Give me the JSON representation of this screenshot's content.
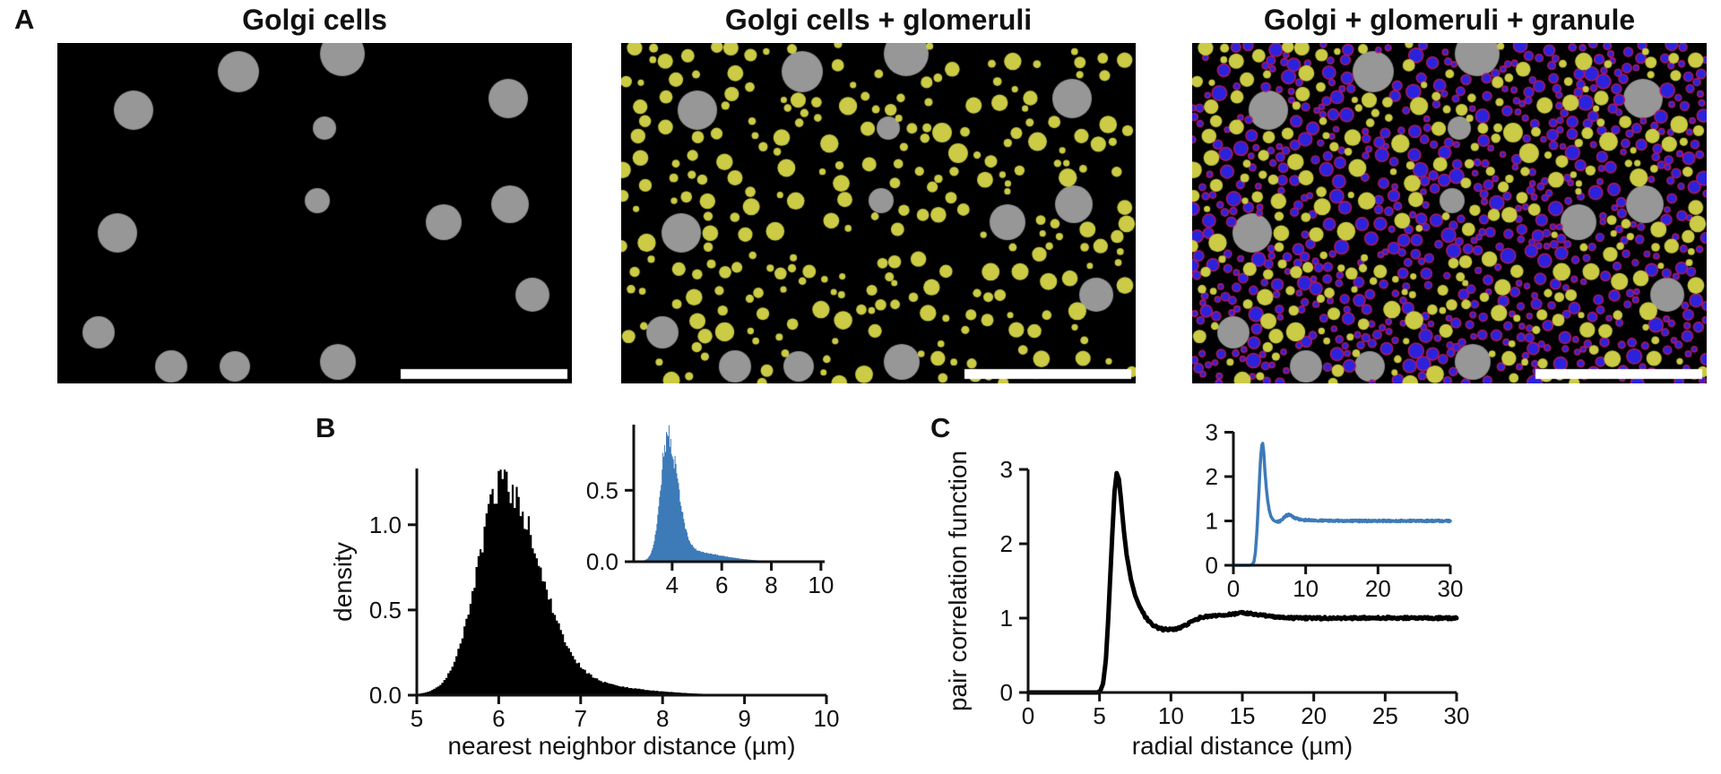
{
  "figure": {
    "labels": {
      "a": "A",
      "b": "B",
      "c": "C"
    },
    "background": "#ffffff",
    "text_color": "#111111"
  },
  "panels_a": {
    "titles": [
      "Golgi cells",
      "Golgi cells + glomeruli",
      "Golgi + glomeruli + granule"
    ],
    "image_background": "#000000",
    "layers": {
      "golgi": {
        "label": "Golgi cells",
        "color": "#979797",
        "positions": [
          [
            202,
            32,
            23
          ],
          [
            318,
            12,
            25
          ],
          [
            85,
            75,
            22
          ],
          [
            503,
            62,
            22
          ],
          [
            298,
            95,
            13
          ],
          [
            290,
            176,
            14
          ],
          [
            505,
            180,
            21
          ],
          [
            431,
            200,
            20
          ],
          [
            67,
            212,
            22
          ],
          [
            530,
            281,
            19
          ],
          [
            46,
            323,
            18
          ],
          [
            127,
            361,
            18
          ],
          [
            198,
            361,
            17
          ],
          [
            313,
            356,
            20
          ]
        ]
      },
      "glomeruli": {
        "label": "glomeruli",
        "color": "#cbcb45",
        "count": 265,
        "radius_min": 3.5,
        "radius_max": 11,
        "seed": 101
      },
      "granule": {
        "label": "granule",
        "fill": "#2a22dd",
        "stroke": "#a81a66",
        "count": 640,
        "radius_min": 3,
        "radius_max": 8.5,
        "seed": 202
      }
    },
    "scale_bar": {
      "color": "#ffffff",
      "width": 186,
      "height": 11,
      "margin_right": 5,
      "margin_bottom": 5
    }
  },
  "chart_data": [
    {
      "id": "b_main",
      "panel": "B",
      "type": "histogram",
      "color": "#000000",
      "xlabel": "nearest neighbor distance (µm)",
      "ylabel": "density",
      "xlim": [
        5,
        10
      ],
      "ylim": [
        0,
        1.33
      ],
      "x_ticks": [
        5,
        6,
        7,
        8,
        9,
        10
      ],
      "x_tick_labels": [
        "5",
        "6",
        "7",
        "8",
        "9",
        "10"
      ],
      "y_ticks": [
        0,
        0.5,
        1.0
      ],
      "y_tick_labels": [
        "0.0",
        "0.5",
        "1.0"
      ],
      "peak_x": 6.05,
      "peak_y": 1.26,
      "distribution": {
        "components": [
          [
            1.18,
            6.05,
            0.3,
            0.42
          ],
          [
            0.1,
            6.35,
            0.55,
            0.95
          ]
        ],
        "range": [
          5.03,
          9.2
        ],
        "bins": 170,
        "noise": 0.05,
        "seed": 11
      }
    },
    {
      "id": "b_inset",
      "panel": "B",
      "type": "histogram",
      "color": "#3d7ab8",
      "xlabel": "",
      "ylabel": "",
      "xlim": [
        2.45,
        10.15
      ],
      "ylim": [
        0,
        0.96
      ],
      "x_ticks": [
        4,
        6,
        8,
        10
      ],
      "x_tick_labels": [
        "4",
        "6",
        "8",
        "10"
      ],
      "y_ticks": [
        0,
        0.5
      ],
      "y_tick_labels": [
        "0.0",
        "0.5"
      ],
      "peak_x": 3.82,
      "peak_y": 0.88,
      "distribution": {
        "components": [
          [
            0.8,
            3.82,
            0.28,
            0.4
          ],
          [
            0.085,
            4.1,
            0.55,
            1.6
          ]
        ],
        "range": [
          2.6,
          10.1
        ],
        "bins": 215,
        "noise": 0.06,
        "seed": 22
      }
    },
    {
      "id": "c_main",
      "panel": "C",
      "type": "line",
      "color": "#000000",
      "line_width": 5,
      "xlabel": "radial distance (µm)",
      "ylabel": "pair correlation function",
      "xlim": [
        0,
        30
      ],
      "ylim": [
        0,
        3
      ],
      "x_ticks": [
        0,
        5,
        10,
        15,
        20,
        25,
        30
      ],
      "x_tick_labels": [
        "0",
        "5",
        "10",
        "15",
        "20",
        "25",
        "30"
      ],
      "y_ticks": [
        0,
        1,
        2,
        3
      ],
      "y_tick_labels": [
        "0",
        "1",
        "2",
        "3"
      ],
      "peak_x": 6.2,
      "peak_y": 2.95,
      "noise": {
        "amp": 0.015,
        "from": 8
      },
      "points": [
        [
          0,
          0
        ],
        [
          4.85,
          0
        ],
        [
          5.05,
          0.02
        ],
        [
          5.25,
          0.12
        ],
        [
          5.45,
          0.45
        ],
        [
          5.6,
          0.95
        ],
        [
          5.75,
          1.55
        ],
        [
          5.9,
          2.15
        ],
        [
          6.05,
          2.7
        ],
        [
          6.2,
          2.95
        ],
        [
          6.35,
          2.87
        ],
        [
          6.5,
          2.6
        ],
        [
          6.7,
          2.18
        ],
        [
          6.9,
          1.85
        ],
        [
          7.2,
          1.52
        ],
        [
          7.5,
          1.3
        ],
        [
          7.8,
          1.16
        ],
        [
          8.2,
          1.02
        ],
        [
          8.6,
          0.93
        ],
        [
          9.0,
          0.875
        ],
        [
          9.4,
          0.85
        ],
        [
          9.8,
          0.845
        ],
        [
          10.3,
          0.855
        ],
        [
          10.9,
          0.89
        ],
        [
          11.5,
          0.96
        ],
        [
          12.1,
          1.01
        ],
        [
          12.8,
          1.03
        ],
        [
          13.6,
          1.045
        ],
        [
          14.4,
          1.055
        ],
        [
          15.0,
          1.07
        ],
        [
          15.7,
          1.055
        ],
        [
          16.4,
          1.035
        ],
        [
          17.2,
          1.02
        ],
        [
          18.0,
          1.005
        ],
        [
          19.0,
          1.0
        ],
        [
          20.0,
          1.0
        ],
        [
          21.5,
          1.0
        ],
        [
          23.0,
          1.0
        ],
        [
          24.5,
          1.005
        ],
        [
          26.0,
          1.0
        ],
        [
          27.5,
          1.0
        ],
        [
          29.0,
          1.0
        ],
        [
          30.0,
          1.0
        ]
      ]
    },
    {
      "id": "c_inset",
      "panel": "C",
      "type": "line",
      "color": "#3d7ab8",
      "line_width": 3.5,
      "xlabel": "",
      "ylabel": "",
      "xlim": [
        0,
        30
      ],
      "ylim": [
        0,
        3.01
      ],
      "x_ticks": [
        0,
        10,
        20,
        30
      ],
      "x_tick_labels": [
        "0",
        "10",
        "20",
        "30"
      ],
      "y_ticks": [
        0,
        1,
        2,
        3
      ],
      "y_tick_labels": [
        "0",
        "1",
        "2",
        "3"
      ],
      "peak_x": 4.05,
      "peak_y": 2.75,
      "noise": {
        "amp": 0.02,
        "from": 6
      },
      "points": [
        [
          0,
          0
        ],
        [
          2.35,
          0
        ],
        [
          2.6,
          0.02
        ],
        [
          2.85,
          0.08
        ],
        [
          3.05,
          0.3
        ],
        [
          3.25,
          0.75
        ],
        [
          3.45,
          1.4
        ],
        [
          3.65,
          2.05
        ],
        [
          3.8,
          2.5
        ],
        [
          3.95,
          2.72
        ],
        [
          4.05,
          2.75
        ],
        [
          4.2,
          2.55
        ],
        [
          4.35,
          2.15
        ],
        [
          4.55,
          1.75
        ],
        [
          4.75,
          1.45
        ],
        [
          4.95,
          1.25
        ],
        [
          5.2,
          1.1
        ],
        [
          5.5,
          1.02
        ],
        [
          5.8,
          0.99
        ],
        [
          6.1,
          0.98
        ],
        [
          6.5,
          1.0
        ],
        [
          6.9,
          1.06
        ],
        [
          7.3,
          1.12
        ],
        [
          7.7,
          1.14
        ],
        [
          8.1,
          1.11
        ],
        [
          8.5,
          1.07
        ],
        [
          9.0,
          1.04
        ],
        [
          9.6,
          1.02
        ],
        [
          10.3,
          1.02
        ],
        [
          11.2,
          1.015
        ],
        [
          12.2,
          1.01
        ],
        [
          13.5,
          1.0
        ],
        [
          15.0,
          1.0
        ],
        [
          17.0,
          1.0
        ],
        [
          19.0,
          1.0
        ],
        [
          21.0,
          1.0
        ],
        [
          23.0,
          1.0
        ],
        [
          25.0,
          1.0
        ],
        [
          27.0,
          1.0
        ],
        [
          29.0,
          1.0
        ],
        [
          30.0,
          1.0
        ]
      ]
    }
  ]
}
